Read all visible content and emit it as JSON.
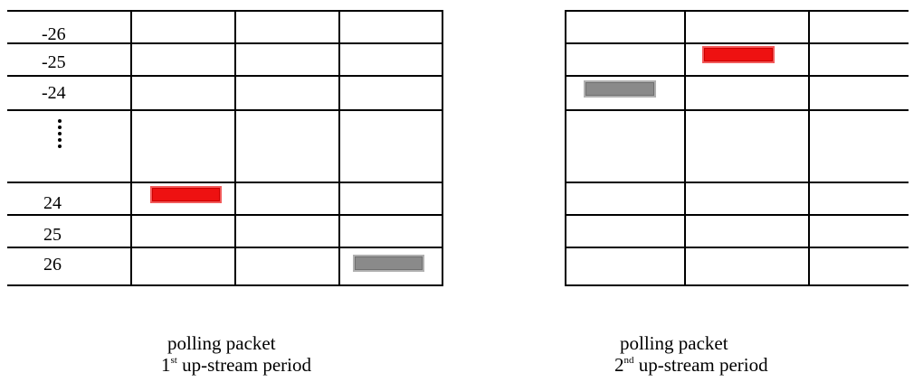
{
  "diagram": {
    "left_grid": {
      "row_labels": [
        "-26",
        "-25",
        "-24",
        "24",
        "25",
        "26"
      ],
      "markers": [
        {
          "type": "polling packet",
          "row_index": 4,
          "col_index": 1,
          "color": "#ee1111"
        },
        {
          "type": "data packet",
          "row_index": 7,
          "col_index": 3,
          "color": "#8a8a8a"
        }
      ]
    },
    "right_grid": {
      "markers": [
        {
          "type": "polling packet",
          "row_index": 1,
          "col_index": 1,
          "color": "#ee1111"
        },
        {
          "type": "data packet",
          "row_index": 2,
          "col_index": 0,
          "color": "#8a8a8a"
        }
      ]
    },
    "captions": [
      {
        "line1": "polling packet",
        "ordinal_num": "1",
        "ordinal_suffix": "st",
        "line2_rest": " up-stream period"
      },
      {
        "line1": "polling packet",
        "ordinal_num": "2",
        "ordinal_suffix": "nd",
        "line2_rest": " up-stream period"
      }
    ]
  }
}
